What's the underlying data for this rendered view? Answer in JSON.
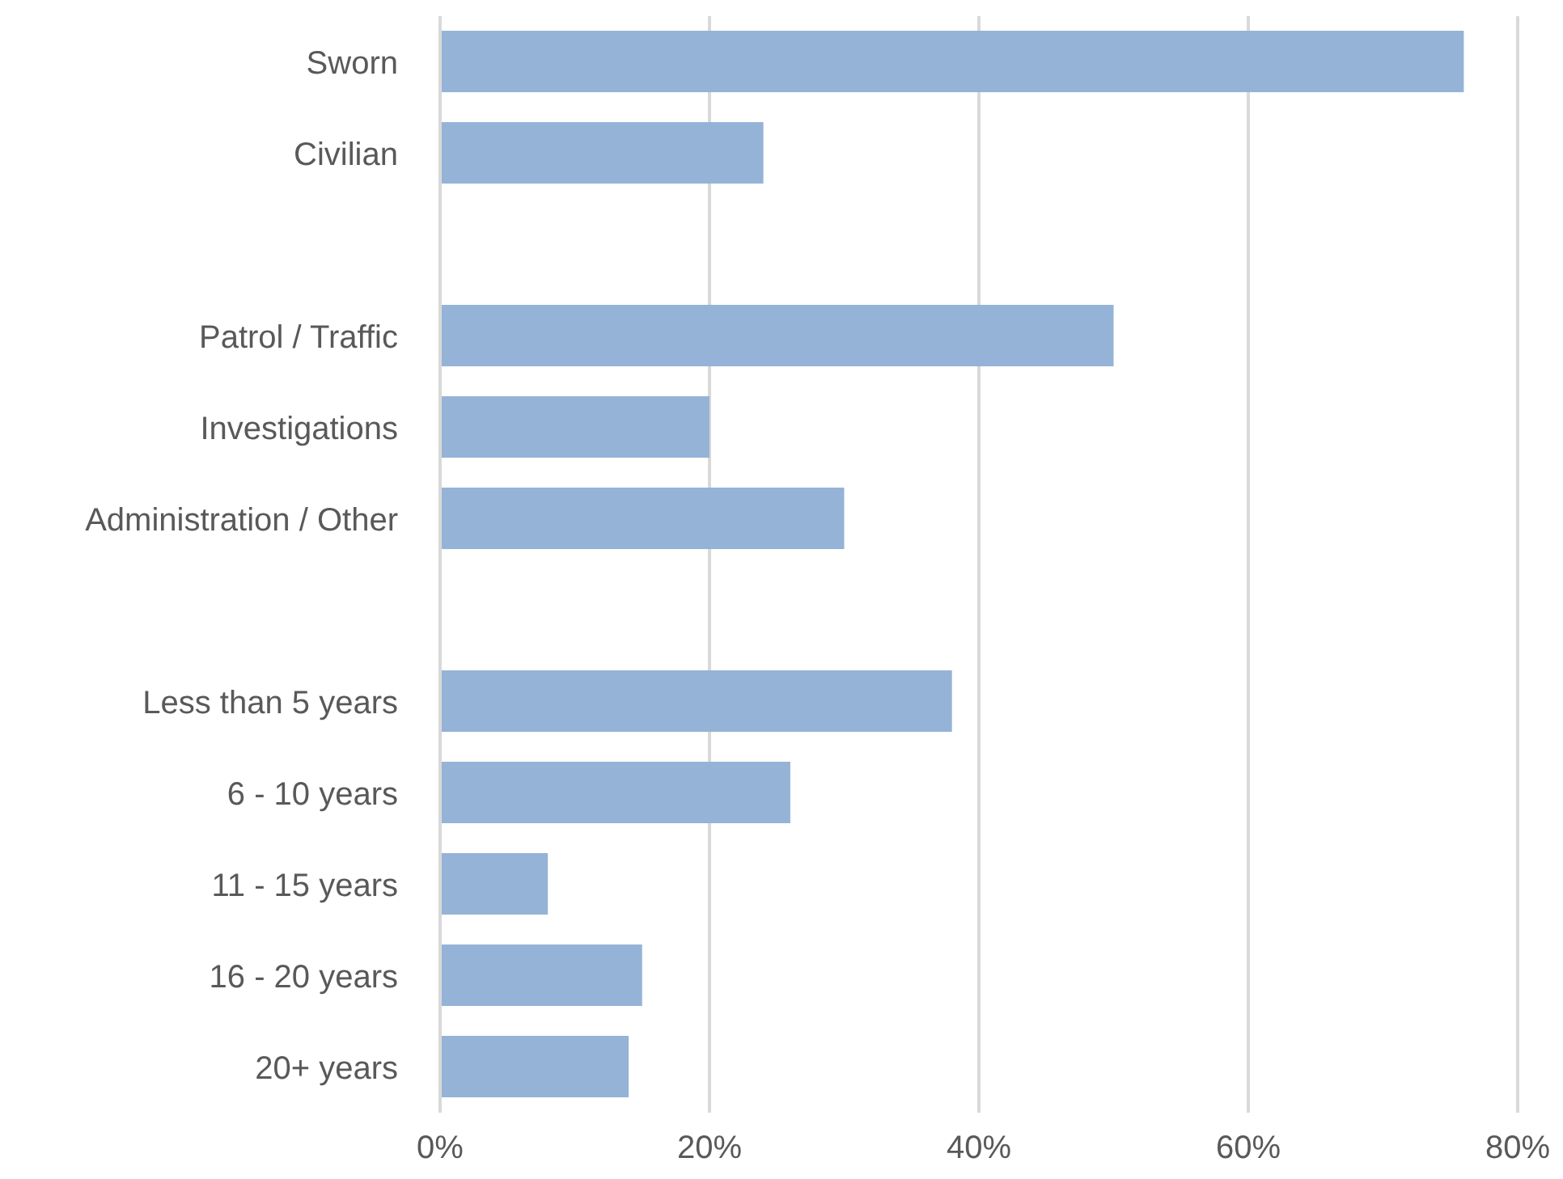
{
  "chart_data": {
    "type": "bar",
    "orientation": "horizontal",
    "categories": [
      "Sworn",
      "Civilian",
      null,
      "Patrol / Traffic",
      "Investigations",
      "Administration / Other",
      null,
      "Less than 5 years",
      "6 - 10 years",
      "11 - 15 years",
      "16 - 20 years",
      "20+ years"
    ],
    "values": [
      76,
      24,
      null,
      50,
      20,
      30,
      null,
      38,
      26,
      8,
      15,
      14
    ],
    "color": "#95b3d7",
    "xlim": [
      0,
      80
    ],
    "xticks": [
      {
        "value": 0,
        "label": "0%"
      },
      {
        "value": 20,
        "label": "20%"
      },
      {
        "value": 40,
        "label": "40%"
      },
      {
        "value": 60,
        "label": "60%"
      },
      {
        "value": 80,
        "label": "80%"
      }
    ],
    "grid": "x"
  }
}
